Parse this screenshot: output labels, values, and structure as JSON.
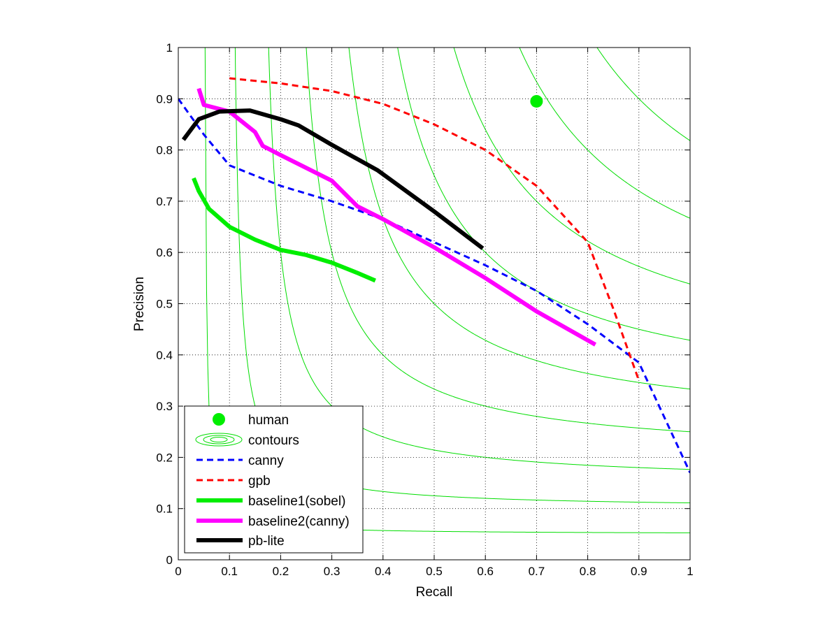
{
  "chart_data": {
    "type": "line",
    "title": "",
    "xlabel": "Recall",
    "ylabel": "Precision",
    "xlim": [
      0,
      1
    ],
    "ylim": [
      0,
      1
    ],
    "xticks": [
      "0",
      "0.1",
      "0.2",
      "0.3",
      "0.4",
      "0.5",
      "0.6",
      "0.7",
      "0.8",
      "0.9",
      "1"
    ],
    "yticks": [
      "0",
      "0.1",
      "0.2",
      "0.3",
      "0.4",
      "0.5",
      "0.6",
      "0.7",
      "0.8",
      "0.9",
      "1"
    ],
    "grid": true,
    "legend_position": "bottom-left",
    "contour_color": "#00dd00",
    "contour_levels": [
      0.1,
      0.2,
      0.3,
      0.4,
      0.5,
      0.6,
      0.7,
      0.8,
      0.9
    ],
    "human": {
      "name": "human",
      "x": 0.7,
      "y": 0.895,
      "color": "#00ee00"
    },
    "contours": {
      "name": "contours"
    },
    "series": [
      {
        "name": "canny",
        "color": "#0000ff",
        "style": "dashed",
        "x": [
          0.0,
          0.05,
          0.1,
          0.2,
          0.3,
          0.4,
          0.5,
          0.6,
          0.7,
          0.8,
          0.9,
          1.0
        ],
        "y": [
          0.9,
          0.83,
          0.77,
          0.73,
          0.7,
          0.665,
          0.62,
          0.575,
          0.525,
          0.46,
          0.385,
          0.17
        ]
      },
      {
        "name": "gpb",
        "color": "#ff0000",
        "style": "dashed",
        "x": [
          0.1,
          0.2,
          0.3,
          0.4,
          0.5,
          0.6,
          0.7,
          0.8,
          0.85,
          0.9
        ],
        "y": [
          0.94,
          0.93,
          0.915,
          0.89,
          0.85,
          0.8,
          0.73,
          0.62,
          0.49,
          0.35
        ]
      },
      {
        "name": "baseline1(sobel)",
        "color": "#00ee00",
        "style": "solid",
        "x": [
          0.03,
          0.04,
          0.06,
          0.1,
          0.15,
          0.2,
          0.25,
          0.3,
          0.35,
          0.385
        ],
        "y": [
          0.745,
          0.72,
          0.685,
          0.65,
          0.625,
          0.605,
          0.595,
          0.58,
          0.56,
          0.545
        ]
      },
      {
        "name": "baseline2(canny)",
        "color": "#ff00ff",
        "style": "solid",
        "x": [
          0.04,
          0.05,
          0.1,
          0.15,
          0.165,
          0.2,
          0.3,
          0.35,
          0.4,
          0.5,
          0.6,
          0.7,
          0.815
        ],
        "y": [
          0.92,
          0.888,
          0.875,
          0.835,
          0.808,
          0.79,
          0.74,
          0.69,
          0.665,
          0.61,
          0.55,
          0.485,
          0.42
        ]
      },
      {
        "name": "pb-lite",
        "color": "#000000",
        "style": "solid",
        "x": [
          0.01,
          0.04,
          0.08,
          0.14,
          0.2,
          0.235,
          0.3,
          0.39,
          0.5,
          0.595
        ],
        "y": [
          0.82,
          0.86,
          0.875,
          0.877,
          0.86,
          0.848,
          0.81,
          0.76,
          0.68,
          0.608
        ]
      }
    ]
  }
}
